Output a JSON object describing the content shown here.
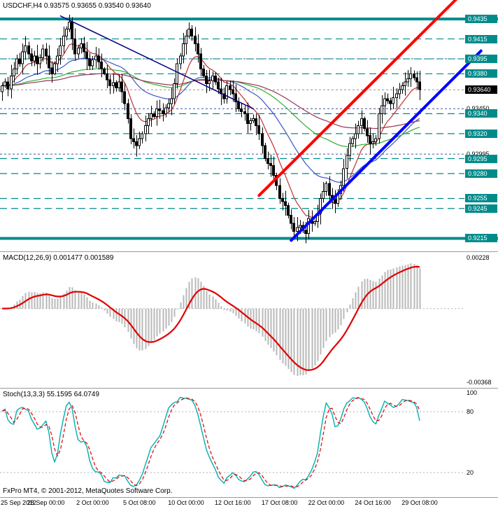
{
  "footer": {
    "copyright": "FxPro MT4, © 2001-2012, MetaQuotes Software Corp.",
    "time_labels": [
      {
        "text": "25 Sep 2012",
        "bar": 0
      },
      {
        "text": "28 Sep 00:00",
        "bar": 15
      },
      {
        "text": "2 Oct 00:00",
        "bar": 31
      },
      {
        "text": "5 Oct 08:00",
        "bar": 47
      },
      {
        "text": "10 Oct 00:00",
        "bar": 63
      },
      {
        "text": "12 Oct 16:00",
        "bar": 79
      },
      {
        "text": "17 Oct 08:00",
        "bar": 95
      },
      {
        "text": "22 Oct 00:00",
        "bar": 111
      },
      {
        "text": "24 Oct 16:00",
        "bar": 127
      },
      {
        "text": "29 Oct 08:00",
        "bar": 143
      }
    ]
  },
  "colors": {
    "background": "#ffffff",
    "grid": "#4050a0",
    "level": "#008b8b",
    "candle_up": "#ffffff",
    "candle_down": "#000000",
    "candle_border": "#000000",
    "current_price_line": "#909090",
    "current_price_box": "#000000",
    "macd_histogram": "#b8b8b8",
    "macd_signal": "#e00000",
    "stoch_main": "#00b0b0",
    "stoch_signal": "#e00000",
    "indicator_level": "#b0b0b0",
    "separator": "#999999"
  },
  "chart_data": [
    {
      "type": "candlestick",
      "title": "USDCHF,H4 0.93575 0.93655 0.93540 0.93640",
      "symbol": "USDCHF",
      "timeframe": "H4",
      "ohlc_display": {
        "open": "0.93575",
        "high": "0.93655",
        "low": "0.93540",
        "close": "0.93640"
      },
      "ylim": [
        0.9202,
        0.9454
      ],
      "closes": [
        0.9368,
        0.9372,
        0.9365,
        0.9378,
        0.9385,
        0.9395,
        0.939,
        0.9402,
        0.9408,
        0.94,
        0.9393,
        0.9398,
        0.939,
        0.9396,
        0.9405,
        0.9398,
        0.9386,
        0.938,
        0.939,
        0.9398,
        0.9408,
        0.9418,
        0.9425,
        0.9432,
        0.9415,
        0.94,
        0.9406,
        0.941,
        0.9402,
        0.9395,
        0.9388,
        0.9394,
        0.9398,
        0.9392,
        0.9385,
        0.938,
        0.9374,
        0.9368,
        0.9371,
        0.9366,
        0.9372,
        0.9362,
        0.935,
        0.9335,
        0.9315,
        0.9312,
        0.9308,
        0.9315,
        0.932,
        0.9328,
        0.9335,
        0.934,
        0.9337,
        0.9345,
        0.9343,
        0.934,
        0.9346,
        0.935,
        0.9355,
        0.937,
        0.939,
        0.9398,
        0.941,
        0.9418,
        0.9425,
        0.9418,
        0.941,
        0.94,
        0.9385,
        0.9378,
        0.937,
        0.9373,
        0.9378,
        0.9372,
        0.9365,
        0.936,
        0.9355,
        0.9368,
        0.9364,
        0.936,
        0.9352,
        0.9345,
        0.9342,
        0.934,
        0.933,
        0.9333,
        0.9335,
        0.9328,
        0.932,
        0.9308,
        0.9295,
        0.929,
        0.9288,
        0.9278,
        0.9268,
        0.9255,
        0.9252,
        0.9248,
        0.9238,
        0.923,
        0.9222,
        0.9226,
        0.9228,
        0.9223,
        0.922,
        0.9235,
        0.923,
        0.9232,
        0.924,
        0.9255,
        0.9262,
        0.927,
        0.9258,
        0.9254,
        0.925,
        0.926,
        0.9268,
        0.9285,
        0.9298,
        0.931,
        0.9315,
        0.932,
        0.9328,
        0.9335,
        0.9325,
        0.9318,
        0.931,
        0.9312,
        0.9315,
        0.934,
        0.9348,
        0.9355,
        0.9353,
        0.935,
        0.9356,
        0.936,
        0.9364,
        0.9368,
        0.9372,
        0.9375,
        0.938,
        0.9376,
        0.9372,
        0.9364
      ],
      "y_ticks": [
        {
          "value": 0.9395,
          "label": "0.93950"
        },
        {
          "value": 0.9345,
          "label": "0.93450"
        },
        {
          "value": 0.92995,
          "label": "0.92995"
        }
      ],
      "levels": [
        {
          "value": 0.9435,
          "label": "0.9435",
          "style": "solid"
        },
        {
          "value": 0.9415,
          "label": "0.9415",
          "style": "dashed"
        },
        {
          "value": 0.9395,
          "label": "0.9395",
          "style": "dashed"
        },
        {
          "value": 0.938,
          "label": "0.9380",
          "style": "dashed"
        },
        {
          "value": 0.934,
          "label": "0.9340",
          "style": "dashed"
        },
        {
          "value": 0.932,
          "label": "0.9320",
          "style": "dashed"
        },
        {
          "value": 0.9295,
          "label": "0.9295",
          "style": "dashed"
        },
        {
          "value": 0.928,
          "label": "0.9280",
          "style": "dashed"
        },
        {
          "value": 0.9255,
          "label": "0.9255",
          "style": "dashed"
        },
        {
          "value": 0.9245,
          "label": "0.9245",
          "style": "dashed"
        },
        {
          "value": 0.9215,
          "label": "0.9215",
          "style": "solid"
        }
      ],
      "current_price": {
        "value": 0.9364,
        "label": "0.93640"
      },
      "moving_averages": [
        {
          "period": 10,
          "color": "#c03030"
        },
        {
          "period": 34,
          "color": "#3a56c8"
        },
        {
          "period": 80,
          "color": "#2faf2f"
        },
        {
          "period": 130,
          "color": "#9c3456"
        }
      ],
      "trendlines": [
        {
          "bar1": 88,
          "price1": 0.9258,
          "bar2": 158,
          "price2": 0.9462,
          "color": "#ff0000",
          "width": 4
        },
        {
          "bar1": 99,
          "price1": 0.9213,
          "bar2": 164,
          "price2": 0.9403,
          "color": "#0000ff",
          "width": 4
        },
        {
          "bar1": 20,
          "price1": 0.9438,
          "bar2": 86,
          "price2": 0.9345,
          "color": "#000080",
          "width": 1.5
        }
      ]
    },
    {
      "type": "macd",
      "title": "MACD(12,26,9) 0.001477 0.001589",
      "params": [
        12,
        26,
        9
      ],
      "current_values": [
        0.001477,
        0.001589
      ],
      "y_ticks": [
        {
          "edge": "top",
          "label": "0.00228"
        },
        {
          "edge": "bottom",
          "label": "-0.00368"
        }
      ]
    },
    {
      "type": "stochastic",
      "title": "Stoch(13,3,3) 55.1595 64.0749",
      "params": [
        13,
        3,
        3
      ],
      "current_values": [
        55.1595,
        64.0749
      ],
      "ylim": [
        0,
        100
      ],
      "levels": [
        80,
        20
      ],
      "y_ticks": [
        {
          "value": 100,
          "label": "100"
        },
        {
          "value": 80,
          "label": "80"
        },
        {
          "value": 20,
          "label": "20"
        }
      ]
    }
  ]
}
